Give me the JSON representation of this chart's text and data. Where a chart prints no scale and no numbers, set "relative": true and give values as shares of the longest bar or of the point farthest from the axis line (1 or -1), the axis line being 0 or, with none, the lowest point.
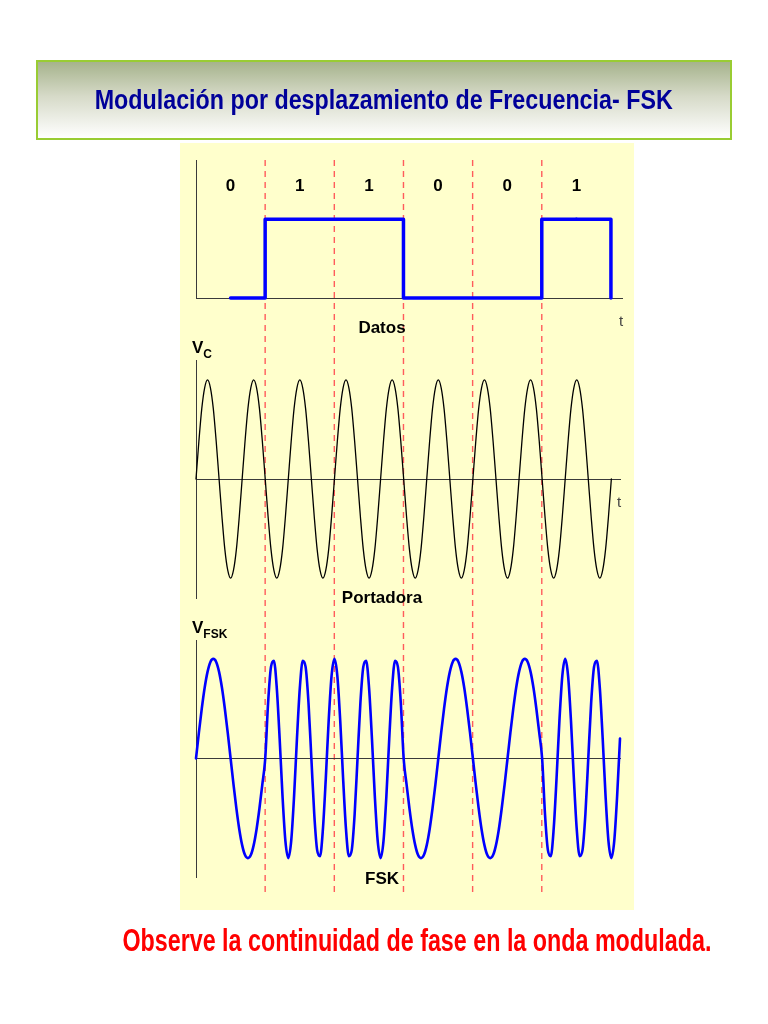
{
  "chart_data": [
    {
      "type": "step",
      "title": "Modulación por desplazamiento de Frecuencia- FSK",
      "xlabel": "t",
      "categories": [
        "0",
        "1",
        "1",
        "0",
        "0",
        "1"
      ],
      "values": [
        0,
        1,
        1,
        0,
        0,
        1
      ],
      "color": "#0000ff",
      "relative": true,
      "grid": "x",
      "annotations": [
        "Datos"
      ]
    },
    {
      "type": "line",
      "ylabel": "V$_{C}$",
      "xlabel": "t",
      "categories": [
        null,
        null,
        null,
        null,
        null,
        null,
        null,
        null,
        null,
        null,
        null,
        null,
        null,
        null,
        null,
        null,
        null,
        null,
        null,
        null,
        null,
        null,
        null,
        null,
        null,
        null,
        null,
        null,
        null,
        null,
        null,
        null,
        null,
        null,
        null,
        null,
        null,
        null,
        null,
        null,
        null,
        null,
        null,
        null,
        null,
        null,
        null,
        null,
        null,
        null,
        null,
        null,
        null,
        null,
        null,
        null,
        null,
        null,
        null,
        null,
        null,
        null,
        null,
        null,
        null,
        null,
        null,
        null,
        null,
        null,
        null,
        null,
        null,
        null,
        null,
        null,
        null,
        null,
        null,
        null,
        null,
        null,
        null,
        null,
        null,
        null,
        null,
        null,
        null,
        null,
        null,
        null,
        null,
        null,
        null,
        null,
        null,
        null,
        null,
        null,
        null,
        null,
        null,
        null,
        null,
        null,
        null,
        null,
        null,
        null,
        null,
        null,
        null,
        null,
        null,
        null,
        null,
        null,
        null,
        null,
        null,
        null,
        null,
        null,
        null,
        null,
        null,
        null,
        null,
        null,
        null,
        null,
        null,
        null,
        null,
        null,
        null,
        null,
        null,
        null,
        null,
        null,
        null,
        null,
        null,
        null,
        null,
        null
      ],
      "values": [
        0,
        0.38,
        0.71,
        0.92,
        1,
        0.92,
        0.71,
        0.38,
        0,
        -0.38,
        -0.71,
        -0.92,
        -1,
        -0.92,
        -0.71,
        -0.38,
        0,
        0.38,
        0.71,
        0.92,
        1,
        0.92,
        0.71,
        0.38,
        0,
        -0.38,
        -0.71,
        -0.92,
        -1,
        -0.92,
        -0.71,
        -0.38,
        0,
        0.38,
        0.71,
        0.92,
        1,
        0.92,
        0.71,
        0.38,
        0,
        -0.38,
        -0.71,
        -0.92,
        -1,
        -0.92,
        -0.71,
        -0.38,
        0,
        0.38,
        0.71,
        0.92,
        1,
        0.92,
        0.71,
        0.38,
        0,
        -0.38,
        -0.71,
        -0.92,
        -1,
        -0.92,
        -0.71,
        -0.38,
        0,
        0.38,
        0.71,
        0.92,
        1,
        0.92,
        0.71,
        0.38,
        0,
        -0.38,
        -0.71,
        -0.92,
        -1,
        -0.92,
        -0.71,
        -0.38,
        0,
        0.38,
        0.71,
        0.92,
        1,
        0.92,
        0.71,
        0.38,
        0,
        -0.38,
        -0.71,
        -0.92,
        -1,
        -0.92,
        -0.71,
        -0.38,
        0,
        0.38,
        0.71,
        0.92,
        1,
        0.92,
        0.71,
        0.38,
        0,
        -0.38,
        -0.71,
        -0.92,
        -1,
        -0.92,
        -0.71,
        -0.38,
        0,
        0.38,
        0.71,
        0.92,
        1,
        0.92,
        0.71,
        0.38,
        0,
        -0.38,
        -0.71,
        -0.92,
        -1,
        -0.92,
        -0.71,
        -0.38,
        0,
        0.38,
        0.71,
        0.92,
        1,
        0.92,
        0.71,
        0.38,
        0,
        -0.38,
        -0.71,
        -0.92,
        -1,
        -0.92,
        -0.71,
        -0.38,
        0,
        null,
        null,
        null
      ],
      "color": "#000000",
      "relative": true,
      "annotations": [
        "Portadora"
      ]
    },
    {
      "type": "line",
      "ylabel": "V$_{FSK}$",
      "categories": [
        null,
        null,
        null,
        null,
        null,
        null,
        null,
        null,
        null,
        null,
        null,
        null,
        null,
        null,
        null,
        null,
        null,
        null,
        null,
        null,
        null,
        null,
        null,
        null,
        null,
        null,
        null,
        null,
        null,
        null,
        null,
        null,
        null,
        null,
        null,
        null,
        null,
        null,
        null,
        null,
        null,
        null,
        null,
        null,
        null,
        null,
        null,
        null,
        null,
        null,
        null,
        null,
        null,
        null,
        null,
        null,
        null,
        null,
        null,
        null,
        null,
        null,
        null,
        null,
        null,
        null,
        null,
        null,
        null,
        null,
        null,
        null,
        null,
        null,
        null,
        null,
        null,
        null,
        null,
        null,
        null,
        null,
        null,
        null,
        null,
        null,
        null,
        null,
        null,
        null,
        null,
        null,
        null,
        null,
        null,
        null,
        null,
        null,
        null,
        null,
        null,
        null,
        null,
        null,
        null,
        null,
        null,
        null,
        null,
        null,
        null,
        null,
        null,
        null,
        null,
        null,
        null,
        null,
        null,
        null,
        null,
        null,
        null,
        null,
        null,
        null,
        null,
        null,
        null,
        null,
        null,
        null,
        null,
        null,
        null,
        null,
        null,
        null,
        null,
        null,
        null,
        null,
        null,
        null,
        null,
        null,
        null,
        null
      ],
      "values": [
        0,
        0.26,
        0.5,
        0.71,
        0.87,
        0.97,
        1,
        0.97,
        0.87,
        0.71,
        0.5,
        0.26,
        0,
        -0.26,
        -0.5,
        -0.71,
        -0.87,
        -0.97,
        -1,
        -0.97,
        -0.87,
        -0.71,
        -0.5,
        -0.26,
        0,
        0.56,
        0.92,
        0.98,
        0.71,
        0.2,
        -0.38,
        -0.83,
        -1,
        -0.83,
        -0.38,
        0.2,
        0.71,
        0.98,
        0.92,
        0.56,
        0,
        -0.56,
        -0.92,
        -0.98,
        -0.71,
        -0.2,
        0.38,
        0.83,
        1,
        0.83,
        0.38,
        -0.2,
        -0.71,
        -0.98,
        -0.92,
        -0.56,
        0,
        0.56,
        0.92,
        0.98,
        0.71,
        0.2,
        -0.38,
        -0.83,
        -1,
        -0.83,
        -0.38,
        0.2,
        0.71,
        0.98,
        0.92,
        0.56,
        0,
        -0.26,
        -0.5,
        -0.71,
        -0.87,
        -0.97,
        -1,
        -0.97,
        -0.87,
        -0.71,
        -0.5,
        -0.26,
        0,
        0.26,
        0.5,
        0.71,
        0.87,
        0.97,
        1,
        0.97,
        0.87,
        0.71,
        0.5,
        0.26,
        0,
        -0.26,
        -0.5,
        -0.71,
        -0.87,
        -0.97,
        -1,
        -0.97,
        -0.87,
        -0.71,
        -0.5,
        -0.26,
        0,
        0.26,
        0.5,
        0.71,
        0.87,
        0.97,
        1,
        0.97,
        0.87,
        0.71,
        0.5,
        0.26,
        0,
        -0.56,
        -0.92,
        -0.98,
        -0.71,
        -0.2,
        0.38,
        0.83,
        1,
        0.83,
        0.38,
        -0.2,
        -0.71,
        -0.98,
        -0.92,
        -0.56,
        0,
        0.56,
        0.92,
        0.98,
        0.71,
        0.2,
        -0.38,
        -0.83,
        -1,
        -0.83,
        -0.38,
        0.2
      ],
      "color": "#0000ff",
      "relative": true,
      "annotations": [
        "FSK",
        "Observe la continuidad de fase en la onda modulada."
      ]
    }
  ]
}
